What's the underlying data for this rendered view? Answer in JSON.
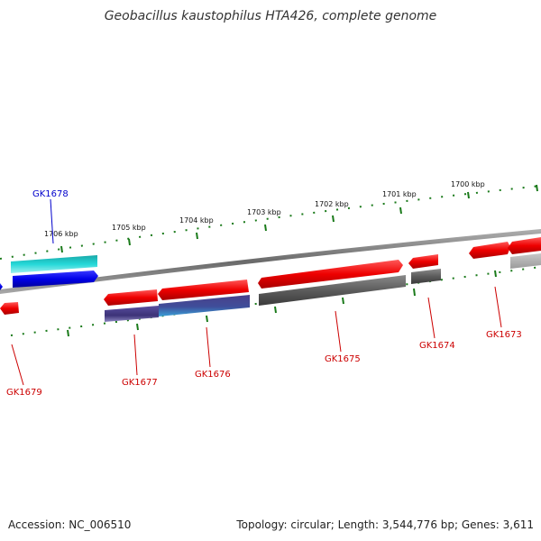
{
  "title": "Geobacillus kaustophilus HTA426, complete genome",
  "footer": {
    "accession": "Accession: NC_006510",
    "summary": "Topology: circular; Length: 3,544,776 bp; Genes: 3,611"
  },
  "scale_ticks": [
    {
      "label": "1700 kbp"
    },
    {
      "label": "1701 kbp"
    },
    {
      "label": "1702 kbp"
    },
    {
      "label": "1703 kbp"
    },
    {
      "label": "1704 kbp"
    },
    {
      "label": "1705 kbp"
    },
    {
      "label": "1706 kbp"
    }
  ],
  "gene_labels": [
    {
      "name": "GK1678",
      "color": "#0000cc"
    },
    {
      "name": "GK1679",
      "color": "#cc0000"
    },
    {
      "name": "GK1677",
      "color": "#cc0000"
    },
    {
      "name": "GK1676",
      "color": "#cc0000"
    },
    {
      "name": "GK1675",
      "color": "#cc0000"
    },
    {
      "name": "GK1674",
      "color": "#cc0000"
    },
    {
      "name": "GK1673",
      "color": "#cc0000"
    }
  ],
  "colors": {
    "forward_strand": "#ff0000",
    "reverse_strand": "#0000ee",
    "cyan_feature": "#1fd0d0",
    "grey_feature": "#666666",
    "purple_feature": "#4a3f8a",
    "backbone": "#8a8a8a",
    "tick": "#1a7a1a"
  }
}
